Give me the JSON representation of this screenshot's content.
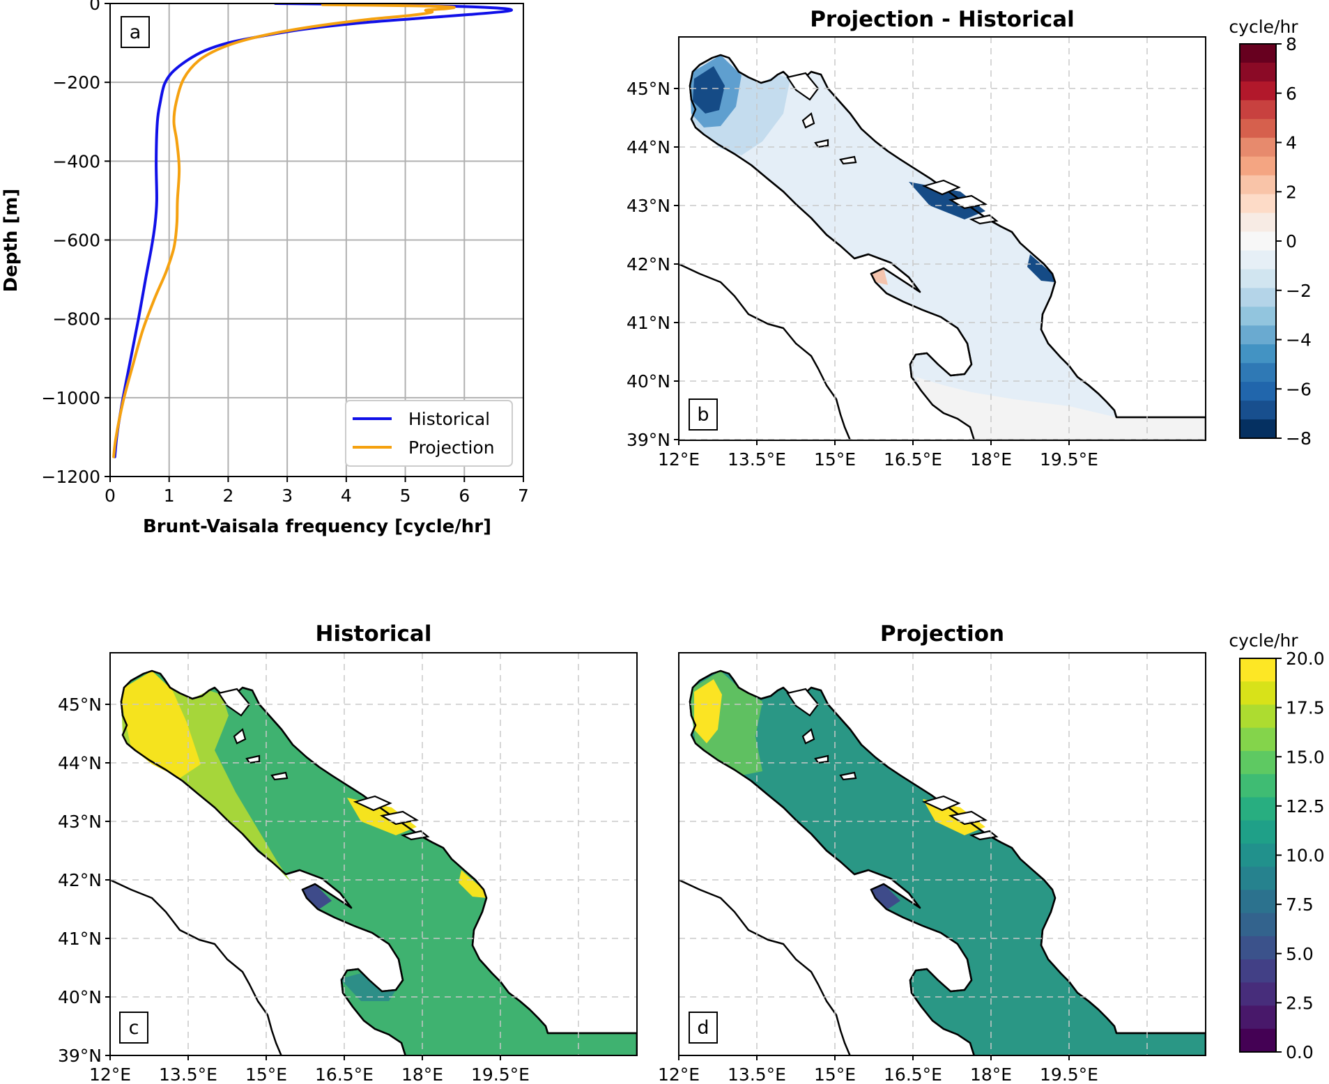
{
  "chart_data": [
    {
      "panel": "a",
      "type": "line",
      "title": "",
      "xlabel": "Brunt-Vaisala frequency [cycle/hr]",
      "ylabel": "Depth [m]",
      "xlim": [
        0,
        7
      ],
      "ylim": [
        -1200,
        0
      ],
      "xticks": [
        "0",
        "1",
        "2",
        "3",
        "4",
        "5",
        "6",
        "7"
      ],
      "yticks": [
        "0",
        "−200",
        "−400",
        "−600",
        "−800",
        "−1000",
        "−1200"
      ],
      "grid": true,
      "legend": "bottom-right",
      "series": [
        {
          "name": "Historical",
          "color": "#1010e8",
          "points": [
            [
              2.8,
              0
            ],
            [
              4.5,
              -3
            ],
            [
              5.8,
              -7
            ],
            [
              6.5,
              -11
            ],
            [
              6.78,
              -15
            ],
            [
              6.7,
              -20
            ],
            [
              6.1,
              -28
            ],
            [
              5.2,
              -38
            ],
            [
              4.2,
              -50
            ],
            [
              3.3,
              -65
            ],
            [
              2.6,
              -82
            ],
            [
              2.0,
              -100
            ],
            [
              1.6,
              -120
            ],
            [
              1.3,
              -145
            ],
            [
              1.05,
              -175
            ],
            [
              0.92,
              -205
            ],
            [
              0.85,
              -250
            ],
            [
              0.8,
              -300
            ],
            [
              0.78,
              -400
            ],
            [
              0.79,
              -500
            ],
            [
              0.76,
              -560
            ],
            [
              0.7,
              -620
            ],
            [
              0.6,
              -700
            ],
            [
              0.48,
              -800
            ],
            [
              0.35,
              -900
            ],
            [
              0.22,
              -1000
            ],
            [
              0.12,
              -1090
            ],
            [
              0.08,
              -1150
            ]
          ]
        },
        {
          "name": "Projection",
          "color": "#f5a10f",
          "points": [
            [
              3.6,
              -3
            ],
            [
              5.2,
              -6
            ],
            [
              5.8,
              -9
            ],
            [
              5.7,
              -13
            ],
            [
              5.35,
              -17
            ],
            [
              5.45,
              -22
            ],
            [
              5.1,
              -30
            ],
            [
              4.4,
              -40
            ],
            [
              3.6,
              -55
            ],
            [
              2.9,
              -72
            ],
            [
              2.3,
              -92
            ],
            [
              1.85,
              -115
            ],
            [
              1.5,
              -145
            ],
            [
              1.25,
              -190
            ],
            [
              1.12,
              -250
            ],
            [
              1.08,
              -300
            ],
            [
              1.13,
              -350
            ],
            [
              1.17,
              -420
            ],
            [
              1.14,
              -500
            ],
            [
              1.13,
              -560
            ],
            [
              1.08,
              -620
            ],
            [
              0.95,
              -680
            ],
            [
              0.75,
              -750
            ],
            [
              0.55,
              -830
            ],
            [
              0.38,
              -920
            ],
            [
              0.22,
              -1010
            ],
            [
              0.1,
              -1100
            ],
            [
              0.06,
              -1150
            ]
          ]
        }
      ]
    },
    {
      "panel": "b",
      "type": "heatmap",
      "title": "Projection - Historical",
      "xticks": [
        "12°E",
        "13.5°E",
        "15°E",
        "16.5°E",
        "18°E",
        "19.5°E"
      ],
      "yticks": [
        "45°N",
        "44°N",
        "43°N",
        "42°N",
        "41°N",
        "40°N",
        "39°N"
      ],
      "colorbar": {
        "label": "cycle/hr",
        "min": -8,
        "max": 8,
        "ticks": [
          "8",
          "6",
          "4",
          "2",
          "0",
          "−2",
          "−4",
          "−6",
          "−8"
        ],
        "cmap": "RdBu_r"
      }
    },
    {
      "panel": "c",
      "type": "heatmap",
      "title": "Historical",
      "xticks": [
        "12°E",
        "13.5°E",
        "15°E",
        "16.5°E",
        "18°E",
        "19.5°E"
      ],
      "yticks": [
        "45°N",
        "44°N",
        "43°N",
        "42°N",
        "41°N",
        "40°N",
        "39°N"
      ]
    },
    {
      "panel": "d",
      "type": "heatmap",
      "title": "Projection",
      "xticks": [
        "12°E",
        "13.5°E",
        "15°E",
        "16.5°E",
        "18°E",
        "19.5°E"
      ],
      "colorbar": {
        "label": "cycle/hr",
        "min": 0,
        "max": 20,
        "ticks": [
          "20.0",
          "17.5",
          "15.0",
          "12.5",
          "10.0",
          "7.5",
          "5.0",
          "2.5",
          "0.0"
        ],
        "cmap": "viridis"
      }
    }
  ],
  "map_colors": {
    "diff_sea": "#e4eef7",
    "diff_strong": "#154b86",
    "diff_mid": "#5f9fcf",
    "diff_light": "#c4dcee",
    "diff_pos": "#f4c4ae",
    "hist_sea": "#3fb270",
    "hist_yellow": "#f5e31e",
    "hist_low": "#3e4b8a",
    "proj_sea": "#2a9785",
    "proj_light": "#5fc061",
    "proj_yellow": "#fbe423",
    "proj_low": "#3e4b8a"
  }
}
